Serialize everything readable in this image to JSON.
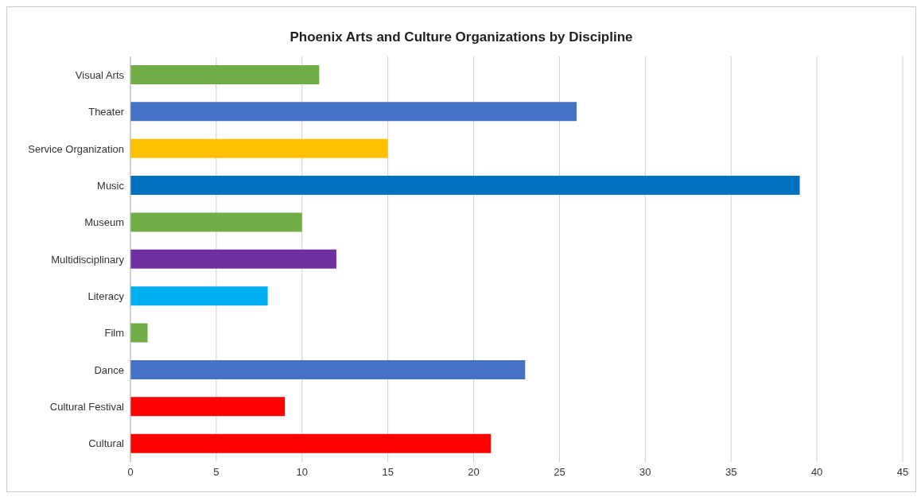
{
  "chart_data": {
    "type": "bar",
    "orientation": "horizontal",
    "title": "Phoenix Arts and Culture Organizations by Discipline",
    "categories": [
      "Visual Arts",
      "Theater",
      "Service Organization",
      "Music",
      "Museum",
      "Multidisciplinary",
      "Literacy",
      "Film",
      "Dance",
      "Cultural Festival",
      "Cultural"
    ],
    "values": [
      11,
      26,
      15,
      39,
      10,
      12,
      8,
      1,
      23,
      9,
      21
    ],
    "colors": [
      "#70ad47",
      "#4472c4",
      "#ffc000",
      "#0070c0",
      "#70ad47",
      "#7030a0",
      "#00b0f0",
      "#70ad47",
      "#4472c4",
      "#ff0000",
      "#ff0000"
    ],
    "xlim": [
      0,
      45
    ],
    "xticks": [
      0,
      5,
      10,
      15,
      20,
      25,
      30,
      35,
      40,
      45
    ],
    "grid": "x"
  }
}
